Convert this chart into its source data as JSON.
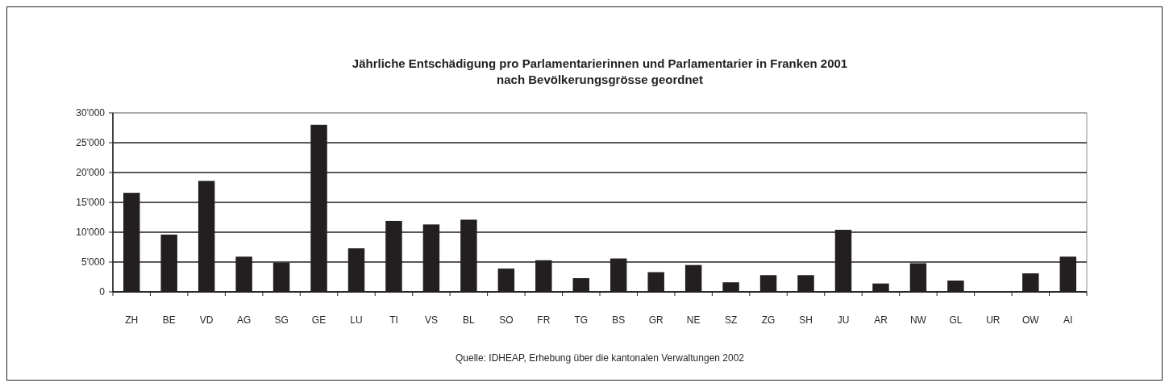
{
  "chart_data": {
    "type": "bar",
    "title": "Jährliche Entschädigung pro Parlamentarierinnen und Parlamentarier in Franken 2001",
    "subtitle": "nach Bevölkerungsgrösse geordnet",
    "categories": [
      "ZH",
      "BE",
      "VD",
      "AG",
      "SG",
      "GE",
      "LU",
      "TI",
      "VS",
      "BL",
      "SO",
      "FR",
      "TG",
      "BS",
      "GR",
      "NE",
      "SZ",
      "ZG",
      "SH",
      "JU",
      "AR",
      "NW",
      "GL",
      "UR",
      "OW",
      "AI"
    ],
    "values": [
      16600,
      9600,
      18600,
      5900,
      4900,
      28000,
      7300,
      11900,
      11300,
      12100,
      3900,
      5300,
      2300,
      5600,
      3300,
      4500,
      1600,
      2800,
      2800,
      10400,
      1400,
      4800,
      1900,
      null,
      3100,
      5900
    ],
    "color": "#231f20",
    "ylim": [
      0,
      30000
    ],
    "yticks": [
      0,
      {
        "value": 5000,
        "label": "5'000"
      },
      {
        "value": 10000,
        "label": "10'000"
      },
      {
        "value": 15000,
        "label": "15'000"
      },
      {
        "value": 20000,
        "label": "20'000"
      },
      {
        "value": 25000,
        "label": "25'000"
      },
      {
        "value": 30000,
        "label": "30'000"
      }
    ],
    "grid": "y",
    "annotations": [
      "Quelle: IDHEAP, Erhebung über die kantonalen Verwaltungen 2002"
    ]
  }
}
